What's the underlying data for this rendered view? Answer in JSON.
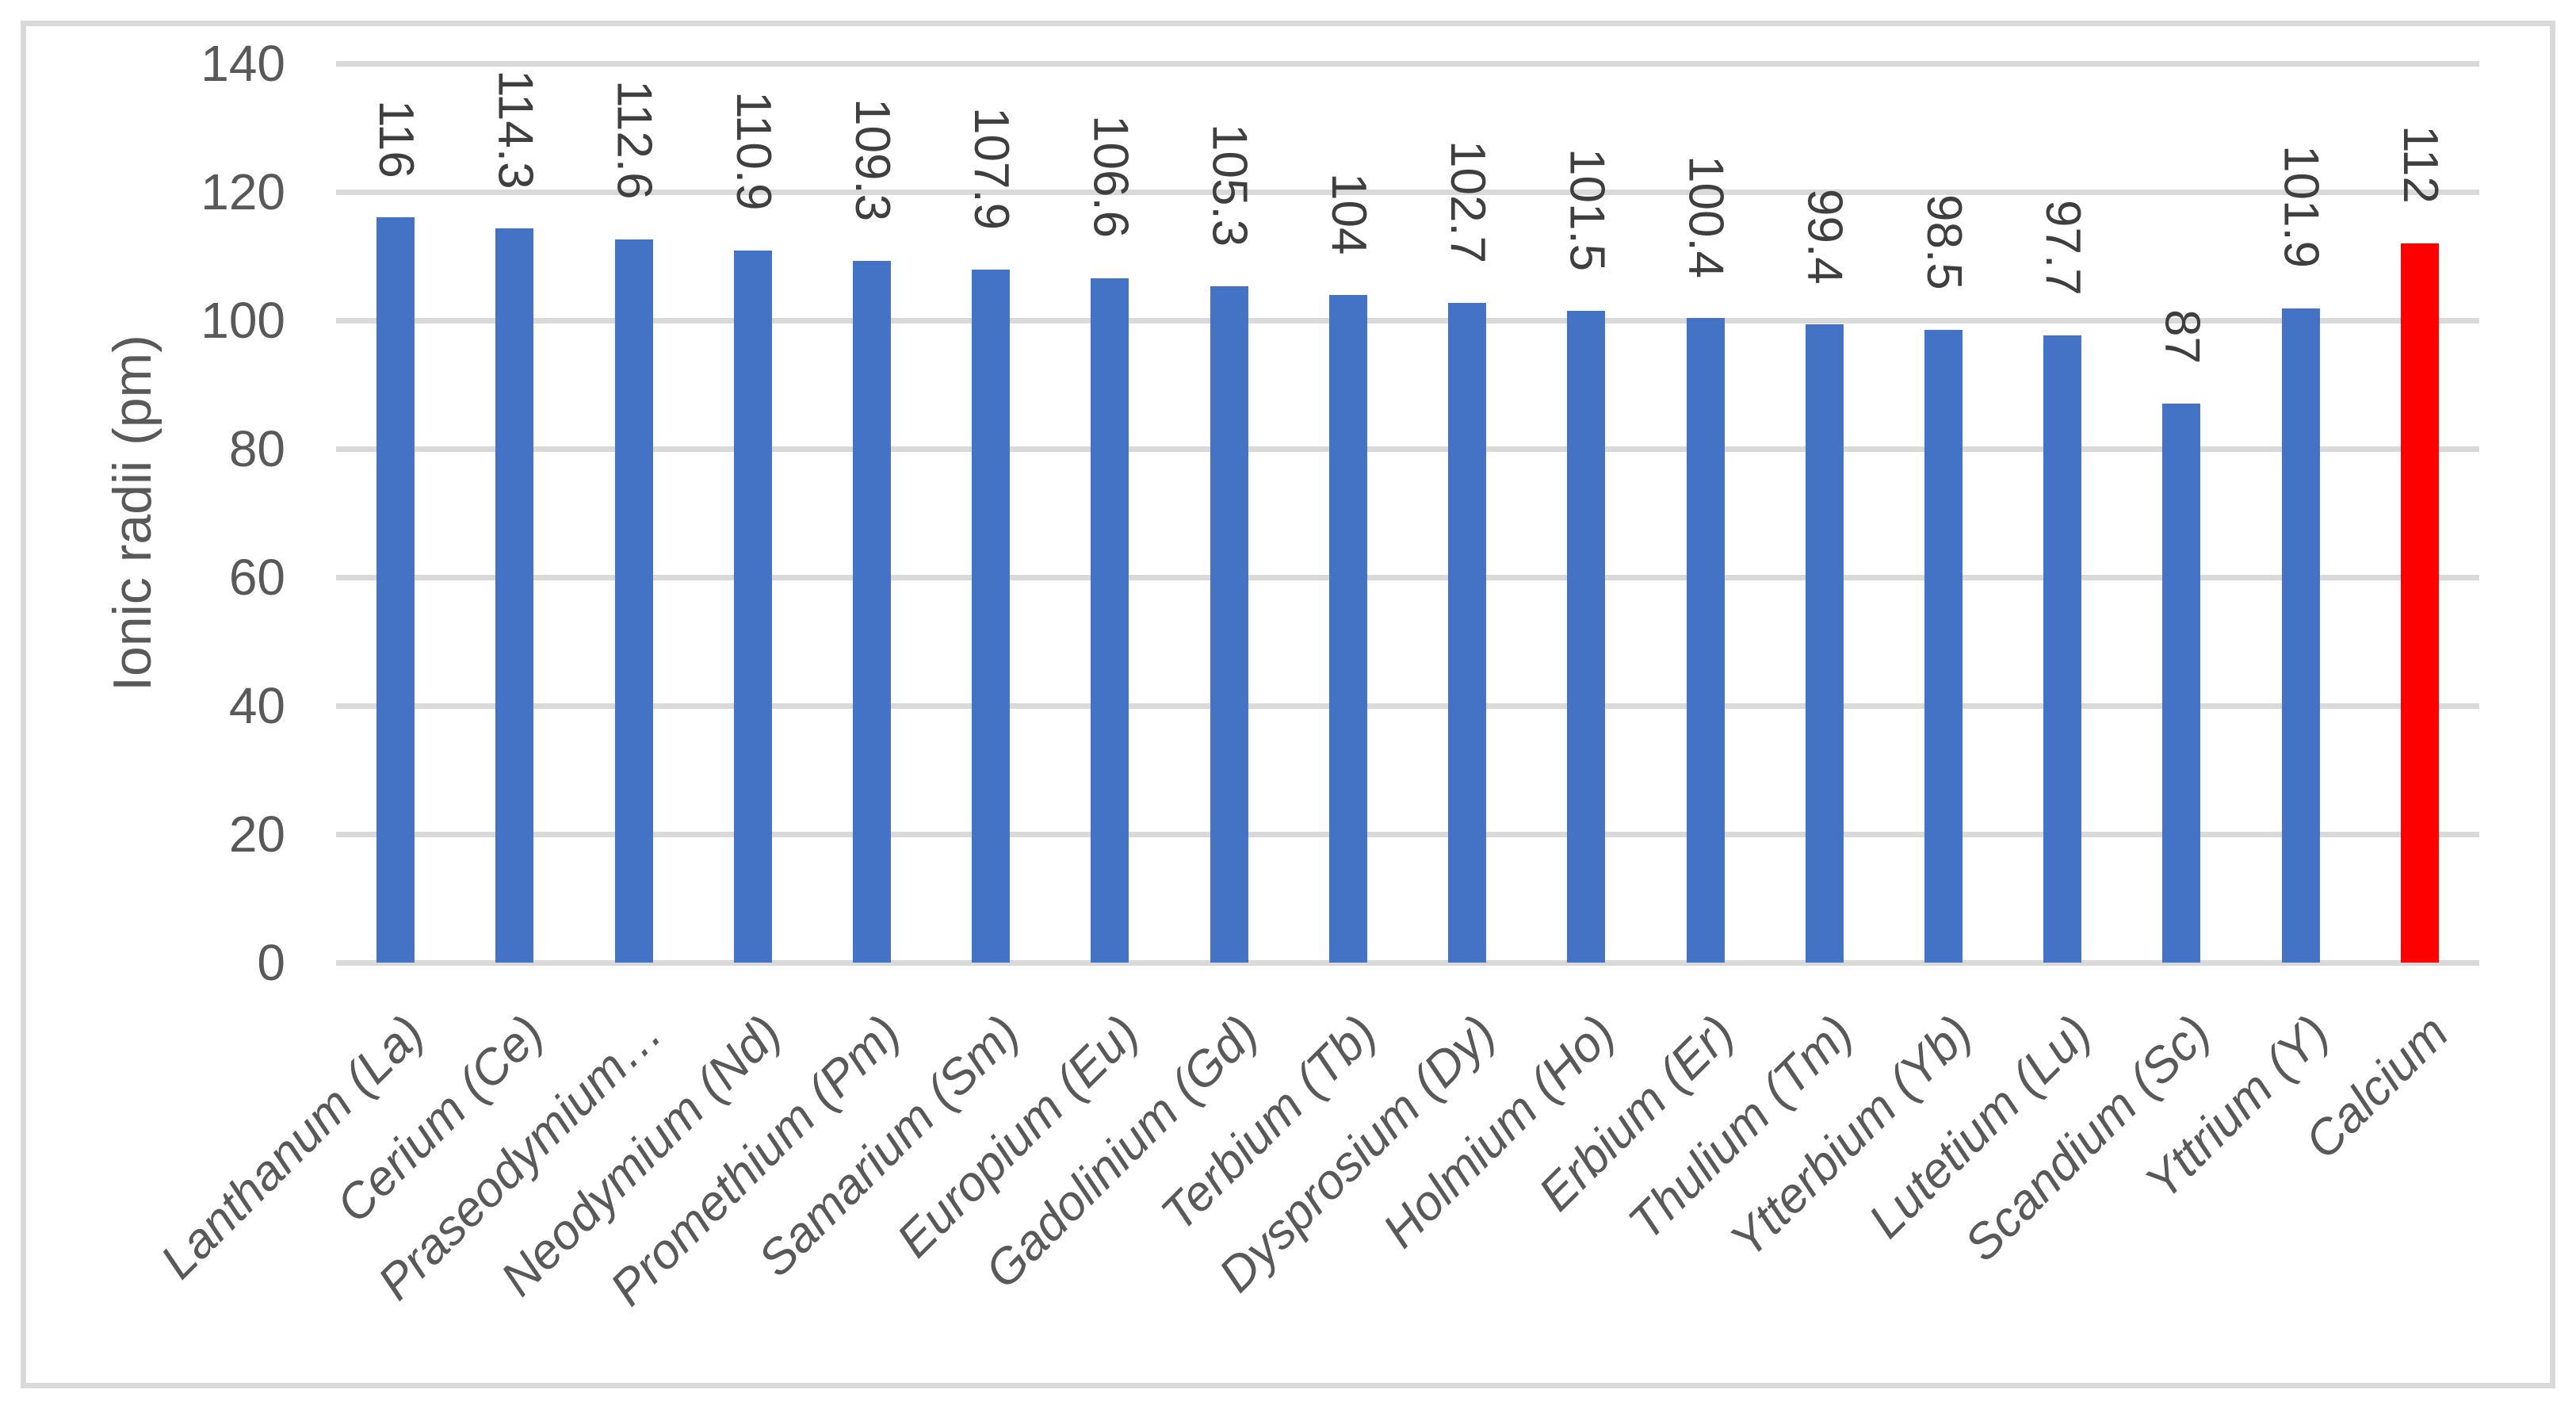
{
  "chart_data": {
    "type": "bar",
    "title": "",
    "ylabel": "Ionic radii (pm)",
    "xlabel": "",
    "ylim": [
      0,
      140
    ],
    "yticks": [
      140,
      120,
      100,
      80,
      60,
      40,
      20,
      0
    ],
    "grid": true,
    "legend_position": "none",
    "categories": [
      "Lanthanum (La)",
      "Cerium (Ce)",
      "Praseodymium…",
      "Neodymium (Nd)",
      "Promethium (Pm)",
      "Samarium (Sm)",
      "Europium (Eu)",
      "Gadolinium (Gd)",
      "Terbium (Tb)",
      "Dysprosium (Dy)",
      "Holmium (Ho)",
      "Erbium (Er)",
      "Thulium (Tm)",
      "Ytterbium (Yb)",
      "Lutetium (Lu)",
      "Scandium (Sc)",
      "Yttrium (Y)",
      "Calcium"
    ],
    "values": [
      116,
      114.3,
      112.6,
      110.9,
      109.3,
      107.9,
      106.6,
      105.3,
      104,
      102.7,
      101.5,
      100.4,
      99.4,
      98.5,
      97.7,
      87,
      101.9,
      112
    ],
    "value_labels": [
      "116",
      "114.3",
      "112.6",
      "110.9",
      "109.3",
      "107.9",
      "106.6",
      "105.3",
      "104",
      "102.7",
      "101.5",
      "100.4",
      "99.4",
      "98.5",
      "97.7",
      "87",
      "101.9",
      "112"
    ],
    "colors": {
      "bar_default": "#4472C4",
      "bar_highlight": "#FF0000",
      "gridline": "#D9D9D9",
      "axis_text": "#595959",
      "value_text": "#3F3F3F",
      "frame_border": "#D9D9D9"
    },
    "highlight_index": 17
  }
}
